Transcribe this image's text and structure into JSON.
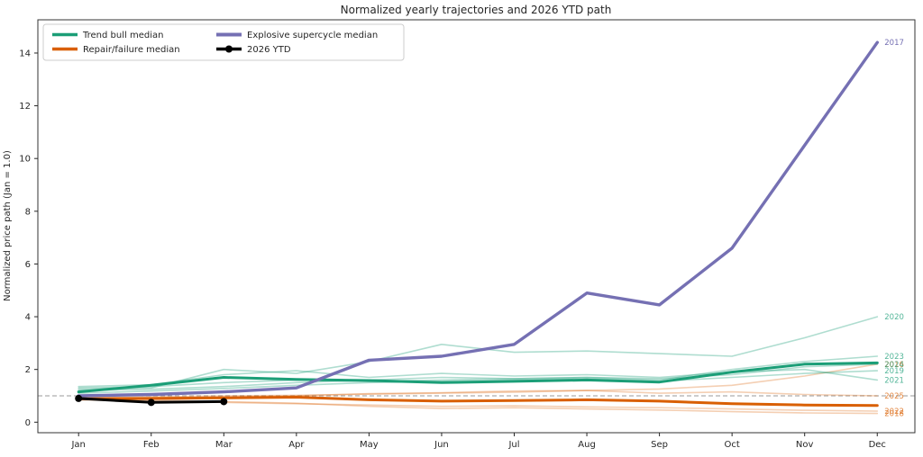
{
  "title": "Normalized yearly trajectories and 2026 YTD path",
  "axes": {
    "ylabel": "Normalized price path (Jan = 1.0)",
    "x_tick_labels": [
      "Jan",
      "Feb",
      "Mar",
      "Apr",
      "May",
      "Jun",
      "Jul",
      "Aug",
      "Sep",
      "Oct",
      "Nov",
      "Dec"
    ],
    "y_tick_values": [
      0,
      2,
      4,
      6,
      8,
      10,
      12,
      14
    ],
    "ylim": [
      -0.4,
      15.26
    ],
    "grid": false
  },
  "reference_line": {
    "value": 1.0,
    "style": "dashed",
    "color": "#999999"
  },
  "legend": {
    "position": "upper-left",
    "items": [
      {
        "label": "Trend bull median",
        "group": "bull_median"
      },
      {
        "label": "Repair/failure median",
        "group": "repair_median"
      },
      {
        "label": "Explosive supercycle median",
        "group": "explosive_median"
      },
      {
        "label": "2026 YTD",
        "group": "ytd"
      }
    ]
  },
  "colors": {
    "bull_median": {
      "stroke": "#1b9e77",
      "width": 3,
      "opacity": 1
    },
    "repair_median": {
      "stroke": "#d95f02",
      "width": 3,
      "opacity": 1
    },
    "explosive_median": {
      "stroke": "#7570b3",
      "width": 3.4,
      "opacity": 1
    },
    "ytd": {
      "stroke": "#000000",
      "width": 3,
      "opacity": 1
    },
    "bull_thin": {
      "stroke": "#1b9e77",
      "width": 1.6,
      "opacity": 0.35
    },
    "repair_thin": {
      "stroke": "#d95f02",
      "width": 1.6,
      "opacity": 0.3
    },
    "explosive_thin": {
      "stroke": "#7570b3",
      "width": 1.6,
      "opacity": 0.5
    },
    "label_bull": "rgba(27,158,119,0.75)",
    "label_repair": "rgba(217,95,2,0.75)",
    "label_explosive": "#7570b3",
    "spine": "#333333",
    "tick": "#262626"
  },
  "chart_data": {
    "type": "line",
    "x": [
      "Jan",
      "Feb",
      "Mar",
      "Apr",
      "May",
      "Jun",
      "Jul",
      "Aug",
      "Sep",
      "Oct",
      "Nov",
      "Dec"
    ],
    "series": [
      {
        "name": "2016",
        "role": "year",
        "group": "repair_thin",
        "label_group": "label_repair",
        "values": [
          0.92,
          0.96,
          1.0,
          1.02,
          1.06,
          1.1,
          1.14,
          1.2,
          1.26,
          1.4,
          1.75,
          2.2
        ]
      },
      {
        "name": "2017",
        "role": "year",
        "group": "explosive_thin",
        "label_group": "label_explosive",
        "values": [
          1.0,
          1.05,
          1.15,
          1.3,
          2.35,
          2.5,
          2.95,
          4.9,
          4.45,
          6.6,
          10.5,
          14.4
        ]
      },
      {
        "name": "2018",
        "role": "year",
        "group": "repair_thin",
        "label_group": "label_repair",
        "values": [
          0.9,
          0.85,
          0.78,
          0.72,
          0.6,
          0.52,
          0.55,
          0.5,
          0.46,
          0.4,
          0.35,
          0.33
        ]
      },
      {
        "name": "2019",
        "role": "year",
        "group": "bull_thin",
        "label_group": "label_bull",
        "values": [
          1.1,
          1.18,
          1.28,
          1.4,
          1.5,
          1.55,
          1.6,
          1.65,
          1.55,
          1.7,
          1.85,
          1.95
        ]
      },
      {
        "name": "2020",
        "role": "year",
        "group": "bull_thin",
        "label_group": "label_bull",
        "values": [
          1.25,
          1.3,
          2.0,
          1.85,
          2.3,
          2.95,
          2.65,
          2.7,
          2.6,
          2.5,
          3.2,
          4.0
        ]
      },
      {
        "name": "2021",
        "role": "year",
        "group": "bull_thin",
        "label_group": "label_bull",
        "values": [
          1.35,
          1.42,
          1.8,
          1.95,
          1.7,
          1.85,
          1.75,
          1.8,
          1.7,
          1.9,
          2.0,
          1.6
        ]
      },
      {
        "name": "2022",
        "role": "year",
        "group": "repair_thin",
        "label_group": "label_repair",
        "values": [
          0.85,
          0.8,
          0.75,
          0.7,
          0.65,
          0.6,
          0.62,
          0.58,
          0.55,
          0.5,
          0.45,
          0.42
        ]
      },
      {
        "name": "2023",
        "role": "year",
        "group": "bull_thin",
        "label_group": "label_bull",
        "values": [
          1.2,
          1.25,
          1.35,
          1.5,
          1.6,
          1.7,
          1.65,
          1.7,
          1.6,
          2.0,
          2.3,
          2.5
        ]
      },
      {
        "name": "2024",
        "role": "year",
        "group": "bull_thin",
        "label_group": "label_bull",
        "values": [
          1.3,
          1.35,
          1.5,
          1.6,
          1.55,
          1.6,
          1.65,
          1.7,
          1.65,
          1.8,
          2.1,
          2.2
        ]
      },
      {
        "name": "2025",
        "role": "year",
        "group": "repair_thin",
        "label_group": "label_repair",
        "values": [
          0.95,
          0.92,
          0.96,
          1.0,
          1.08,
          1.12,
          1.18,
          1.2,
          1.1,
          1.15,
          1.05,
          1.0
        ]
      },
      {
        "name": "Trend bull median",
        "role": "median",
        "group": "bull_median",
        "values": [
          1.15,
          1.4,
          1.7,
          1.62,
          1.58,
          1.5,
          1.55,
          1.6,
          1.52,
          1.9,
          2.2,
          2.25
        ]
      },
      {
        "name": "Repair/failure median",
        "role": "median",
        "group": "repair_median",
        "values": [
          0.88,
          0.9,
          0.92,
          0.95,
          0.85,
          0.8,
          0.82,
          0.85,
          0.8,
          0.7,
          0.65,
          0.63
        ]
      },
      {
        "name": "Explosive supercycle median",
        "role": "median",
        "group": "explosive_median",
        "values": [
          1.0,
          1.05,
          1.15,
          1.3,
          2.35,
          2.5,
          2.95,
          4.9,
          4.45,
          6.6,
          10.5,
          14.4
        ]
      },
      {
        "name": "2026 YTD",
        "role": "ytd",
        "group": "ytd",
        "markers": true,
        "values": [
          0.9,
          0.75,
          0.78
        ]
      }
    ]
  }
}
